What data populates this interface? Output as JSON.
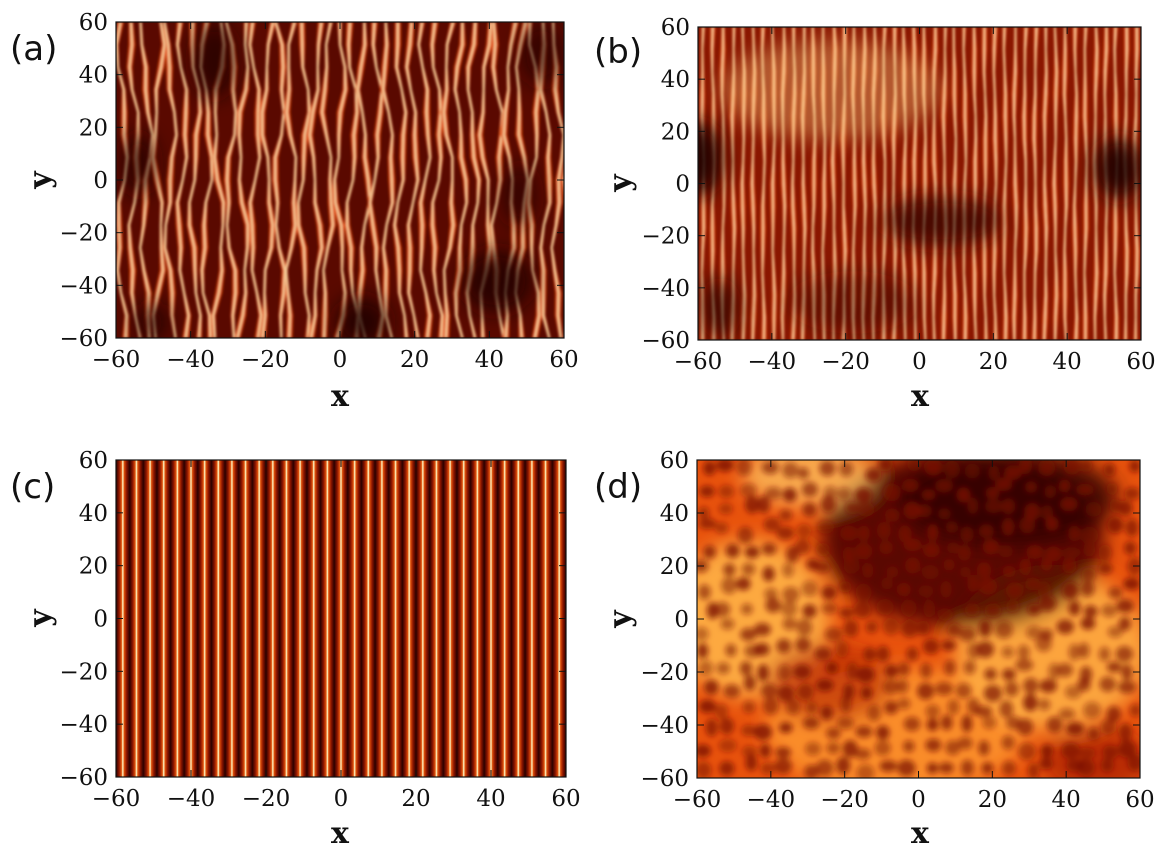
{
  "chart_data": [
    {
      "type": "heatmap",
      "panel_label": "(a)",
      "xlabel": "x",
      "ylabel": "y",
      "xlim": [
        -60,
        60
      ],
      "ylim": [
        -60,
        60
      ],
      "x_ticks": [
        "−60",
        "−40",
        "−20",
        "0",
        "20",
        "40",
        "60"
      ],
      "y_ticks": [
        "60",
        "40",
        "20",
        "0",
        "−20",
        "−40",
        "−60"
      ],
      "pattern": "wavy vertical stripes with defects",
      "stripe_count": 37,
      "colormap": [
        "#2a0000",
        "#8b1500",
        "#e0500a",
        "#ffffcc"
      ]
    },
    {
      "type": "heatmap",
      "panel_label": "(b)",
      "xlabel": "x",
      "ylabel": "y",
      "xlim": [
        -60,
        60
      ],
      "ylim": [
        -60,
        60
      ],
      "x_ticks": [
        "−60",
        "−40",
        "−20",
        "0",
        "20",
        "40",
        "60"
      ],
      "y_ticks": [
        "60",
        "40",
        "20",
        "0",
        "−20",
        "−40",
        "−60"
      ],
      "pattern": "regular vertical stripes with dark modulated band",
      "stripe_count": 44,
      "colormap": [
        "#2a0000",
        "#8b1500",
        "#e0500a",
        "#ffffcc"
      ]
    },
    {
      "type": "heatmap",
      "panel_label": "(c)",
      "xlabel": "x",
      "ylabel": "y",
      "xlim": [
        -60,
        60
      ],
      "ylim": [
        -60,
        60
      ],
      "x_ticks": [
        "−60",
        "−40",
        "−20",
        "0",
        "20",
        "40",
        "60"
      ],
      "y_ticks": [
        "60",
        "40",
        "20",
        "0",
        "−20",
        "−40",
        "−60"
      ],
      "pattern": "perfectly straight vertical stripes",
      "stripe_count": 33,
      "colormap": [
        "#2a0000",
        "#8b1500",
        "#e0500a",
        "#ffffcc"
      ]
    },
    {
      "type": "heatmap",
      "panel_label": "(d)",
      "xlabel": "x",
      "ylabel": "y",
      "xlim": [
        -60,
        60
      ],
      "ylim": [
        -60,
        60
      ],
      "x_ticks": [
        "−60",
        "−40",
        "−20",
        "0",
        "20",
        "40",
        "60"
      ],
      "y_ticks": [
        "60",
        "40",
        "20",
        "0",
        "−20",
        "−40",
        "−60"
      ],
      "pattern": "disordered cellular pattern",
      "stripe_count": 0,
      "colormap": [
        "#2a0000",
        "#8b1500",
        "#e0500a",
        "#ffffcc"
      ]
    }
  ]
}
